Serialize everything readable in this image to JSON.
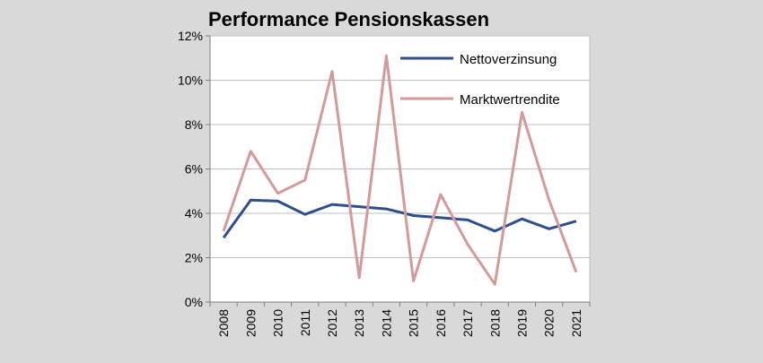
{
  "chart_data": {
    "type": "line",
    "title": "Performance Pensionskassen",
    "xlabel": "",
    "ylabel": "",
    "categories": [
      "2008",
      "2009",
      "2010",
      "2011",
      "2012",
      "2013",
      "2014",
      "2015",
      "2016",
      "2017",
      "2018",
      "2019",
      "2020",
      "2021"
    ],
    "y_ticks": [
      "0%",
      "2%",
      "4%",
      "6%",
      "8%",
      "10%",
      "12%"
    ],
    "ylim": [
      0,
      12
    ],
    "grid": true,
    "legend_position": "top-right",
    "series": [
      {
        "name": "Nettoverzinsung",
        "color": "#2e4f8f",
        "values": [
          2.9,
          4.6,
          4.55,
          3.95,
          4.4,
          4.3,
          4.2,
          3.9,
          3.8,
          3.7,
          3.2,
          3.75,
          3.3,
          3.65
        ]
      },
      {
        "name": "Marktwertrendite",
        "color": "#d49a9a",
        "values": [
          3.2,
          6.8,
          4.9,
          5.5,
          10.4,
          1.1,
          11.1,
          0.95,
          4.85,
          2.6,
          0.8,
          8.55,
          4.6,
          1.35
        ]
      }
    ]
  },
  "colors": {
    "background": "#d9d9d9",
    "plot_area": "#ffffff",
    "gridline": "#bfbfbf",
    "axis": "#808080"
  }
}
